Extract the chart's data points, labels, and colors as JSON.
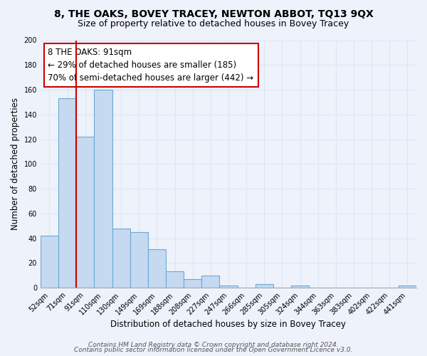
{
  "title": "8, THE OAKS, BOVEY TRACEY, NEWTON ABBOT, TQ13 9QX",
  "subtitle": "Size of property relative to detached houses in Bovey Tracey",
  "xlabel": "Distribution of detached houses by size in Bovey Tracey",
  "ylabel": "Number of detached properties",
  "categories": [
    "52sqm",
    "71sqm",
    "91sqm",
    "110sqm",
    "130sqm",
    "149sqm",
    "169sqm",
    "188sqm",
    "208sqm",
    "227sqm",
    "247sqm",
    "266sqm",
    "285sqm",
    "305sqm",
    "324sqm",
    "344sqm",
    "363sqm",
    "383sqm",
    "402sqm",
    "422sqm",
    "441sqm"
  ],
  "bar_heights": [
    42,
    153,
    122,
    160,
    48,
    45,
    31,
    13,
    7,
    10,
    2,
    0,
    3,
    0,
    2,
    0,
    0,
    0,
    0,
    0,
    2
  ],
  "bar_color": "#c5d9f0",
  "bar_edge_color": "#6aaad4",
  "vline_x": 1.5,
  "vline_color": "#cc0000",
  "ylim": [
    0,
    200
  ],
  "yticks": [
    0,
    20,
    40,
    60,
    80,
    100,
    120,
    140,
    160,
    180,
    200
  ],
  "annotation_line1": "8 THE OAKS: 91sqm",
  "annotation_line2": "← 29% of detached houses are smaller (185)",
  "annotation_line3": "70% of semi-detached houses are larger (442) →",
  "box_edge_color": "#cc0000",
  "footer_line1": "Contains HM Land Registry data © Crown copyright and database right 2024.",
  "footer_line2": "Contains public sector information licensed under the Open Government Licence v3.0.",
  "background_color": "#eef2fb",
  "grid_color": "#dde5f5",
  "title_fontsize": 10,
  "subtitle_fontsize": 9,
  "xlabel_fontsize": 8.5,
  "ylabel_fontsize": 8.5,
  "tick_fontsize": 7,
  "annotation_fontsize": 8.5,
  "footer_fontsize": 6.5
}
